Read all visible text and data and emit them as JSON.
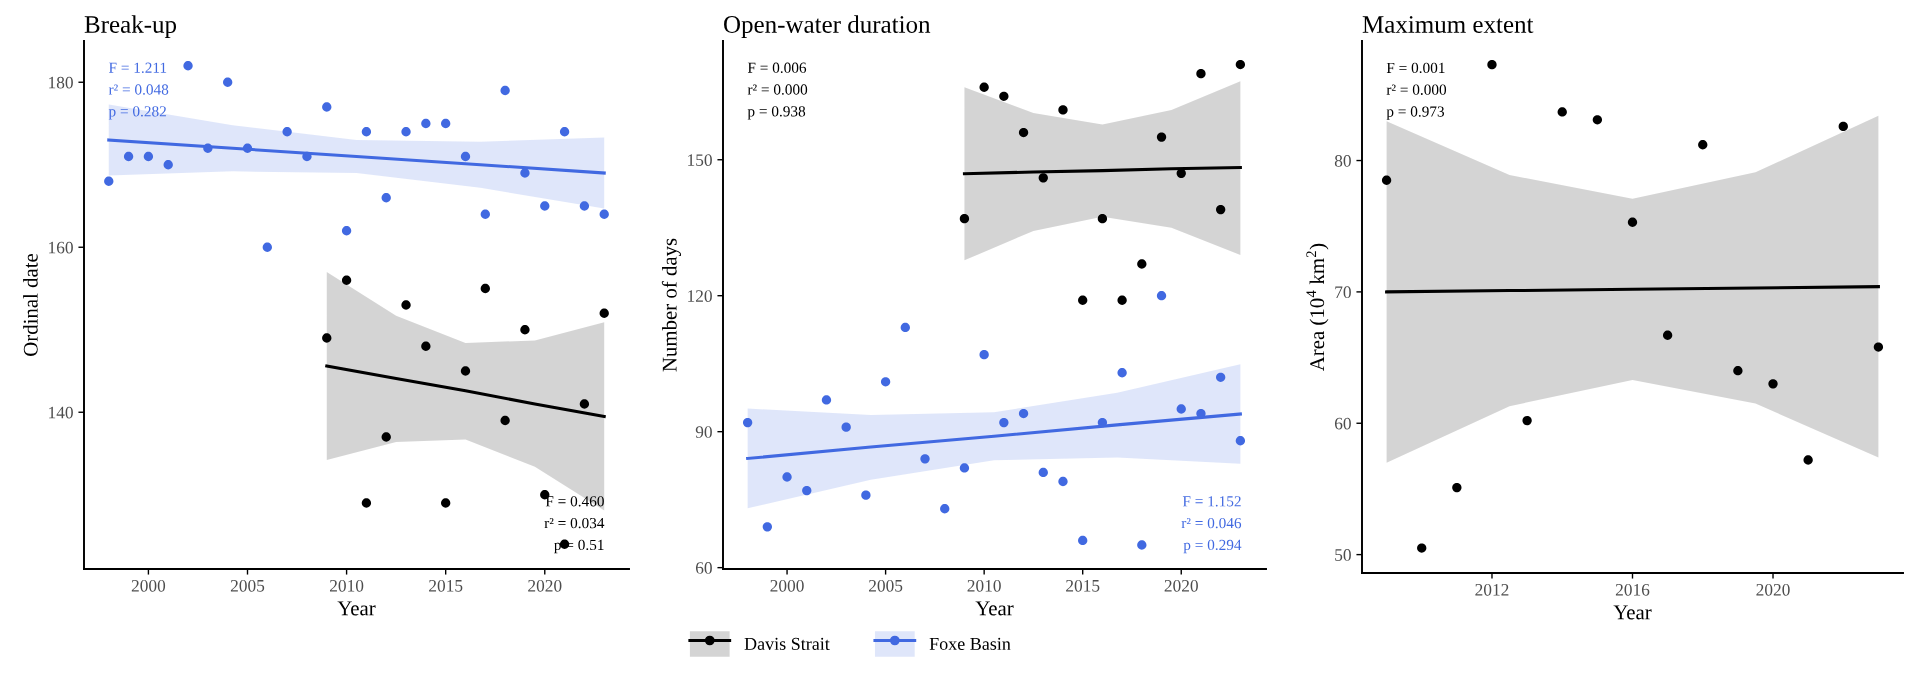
{
  "chart_data": [
    {
      "type": "scatter",
      "title": "Break-up",
      "xlabel": "Year",
      "ylabel": "Ordinal date",
      "xlim": [
        1996.75,
        2024.25
      ],
      "xticks": [
        2000,
        2005,
        2010,
        2015,
        2020
      ],
      "ylim": [
        121,
        185
      ],
      "yticks": [
        140,
        160,
        180
      ],
      "grid": false,
      "legend": false,
      "annotations": [
        "F = 1.211\nr² = 0.048\np = 0.282",
        "F = 0.460\nr² = 0.034\np = 0.51"
      ],
      "series": [
        {
          "marker": "circle",
          "color": "#4169e1",
          "x": [
            1998,
            1999,
            2000,
            2001,
            2002,
            2003,
            2004,
            2005,
            2006,
            2007,
            2008,
            2009,
            2010,
            2011,
            2012,
            2013,
            2014,
            2015,
            2016,
            2017,
            2018,
            2019,
            2020,
            2021,
            2022,
            2023
          ],
          "values": [
            168,
            171,
            171,
            170,
            182,
            172,
            180,
            172,
            160,
            174,
            171,
            177,
            162,
            174,
            166,
            174,
            175,
            175,
            171,
            164,
            179,
            169,
            165,
            174,
            165,
            164
          ]
        },
        {
          "marker": "circle",
          "color": "#000000",
          "x": [
            2009,
            2010,
            2011,
            2012,
            2013,
            2014,
            2015,
            2016,
            2017,
            2018,
            2019,
            2020,
            2021,
            2022,
            2023
          ],
          "values": [
            149,
            156,
            129,
            137,
            153,
            148,
            129,
            145,
            155,
            139,
            150,
            130,
            124,
            141,
            152
          ]
        },
        {
          "type": "line",
          "marker": "none",
          "color": "#4169e1",
          "x": [
            1998,
            2004.25,
            2010.5,
            2016.75,
            2023
          ],
          "values": [
            173,
            172,
            171,
            170,
            169
          ],
          "lower": [
            168.7,
            169.2,
            169.0,
            167.2,
            164.7
          ],
          "upper": [
            177.3,
            174.8,
            173.0,
            172.8,
            173.3
          ]
        },
        {
          "type": "line",
          "marker": "none",
          "color": "#000000",
          "x": [
            2009,
            2012.5,
            2016,
            2019.5,
            2023
          ],
          "values": [
            145.6,
            144.1,
            142.6,
            141.0,
            139.5
          ],
          "lower": [
            134.2,
            136.4,
            136.7,
            133.4,
            128.1
          ],
          "upper": [
            157.0,
            151.7,
            148.4,
            148.7,
            150.9
          ]
        }
      ]
    },
    {
      "type": "scatter",
      "title": "Open-water duration",
      "xlabel": "Year",
      "ylabel": "Number of days",
      "xlim": [
        1996.75,
        2024.3
      ],
      "xticks": [
        2000,
        2005,
        2010,
        2015,
        2020
      ],
      "ylim": [
        59.7,
        176.2
      ],
      "yticks": [
        60,
        90,
        120,
        150
      ],
      "grid": false,
      "legend": "bottom",
      "annotations": [
        "F = 0.006\nr² = 0.000\np = 0.938",
        "F = 1.152\nr² = 0.046\np = 0.294"
      ],
      "series": [
        {
          "name": "Davis Strait",
          "marker": "circle",
          "color": "#000000",
          "x": [
            2009,
            2010,
            2011,
            2012,
            2013,
            2014,
            2015,
            2016,
            2017,
            2018,
            2019,
            2020,
            2021,
            2022,
            2023
          ],
          "values": [
            137,
            166,
            164,
            156,
            146,
            161,
            119,
            137,
            119,
            127,
            155,
            147,
            169,
            139,
            171
          ]
        },
        {
          "name": "Foxe Basin",
          "marker": "circle",
          "color": "#4169e1",
          "x": [
            1998,
            1999,
            2000,
            2001,
            2002,
            2003,
            2004,
            2005,
            2006,
            2007,
            2008,
            2009,
            2010,
            2011,
            2012,
            2013,
            2014,
            2015,
            2016,
            2017,
            2018,
            2019,
            2020,
            2021,
            2022,
            2023
          ],
          "values": [
            92,
            69,
            80,
            77,
            97,
            91,
            76,
            101,
            113,
            84,
            73,
            82,
            107,
            92,
            94,
            81,
            79,
            66,
            92,
            103,
            65,
            120,
            95,
            94,
            102,
            88
          ]
        },
        {
          "type": "line",
          "marker": "none",
          "color": "#000000",
          "x": [
            2009,
            2012.5,
            2016,
            2019.5,
            2023
          ],
          "values": [
            146.9,
            147.3,
            147.6,
            148.0,
            148.3
          ],
          "lower": [
            127.8,
            134.3,
            137.4,
            135.0,
            129.0
          ],
          "upper": [
            166.0,
            160.3,
            157.8,
            161.0,
            167.3
          ]
        },
        {
          "type": "line",
          "marker": "none",
          "color": "#4169e1",
          "x": [
            1998,
            2004.25,
            2010.5,
            2016.75,
            2023
          ],
          "values": [
            84.1,
            86.6,
            89.0,
            91.5,
            93.9
          ],
          "lower": [
            73.1,
            79.4,
            83.7,
            84.3,
            82.9
          ],
          "upper": [
            95.1,
            93.7,
            94.3,
            98.6,
            104.9
          ]
        }
      ]
    },
    {
      "type": "scatter",
      "title": "Maximum extent",
      "xlabel": "Year",
      "ylabel": "Area (10$^{4}$ km$^{2}$)",
      "xlim": [
        2008.3,
        2023.7
      ],
      "xticks": [
        2012,
        2016,
        2020
      ],
      "ylim": [
        48.6,
        89.1
      ],
      "yticks": [
        50,
        60,
        70,
        80
      ],
      "grid": false,
      "legend": false,
      "annotations": [
        "F = 0.001\nr² = 0.000\np = 0.973"
      ],
      "series": [
        {
          "marker": "circle",
          "color": "#000000",
          "x": [
            2009,
            2010,
            2011,
            2012,
            2013,
            2014,
            2015,
            2016,
            2017,
            2018,
            2019,
            2020,
            2021,
            2022,
            2023
          ],
          "values": [
            78.5,
            50.5,
            55.1,
            87.3,
            60.2,
            83.7,
            83.1,
            75.3,
            66.7,
            81.2,
            64.0,
            63.0,
            57.2,
            82.6,
            65.8
          ]
        },
        {
          "type": "line",
          "marker": "none",
          "color": "#000000",
          "x": [
            2009,
            2012.5,
            2016,
            2019.5,
            2023
          ],
          "values": [
            70.0,
            70.1,
            70.2,
            70.3,
            70.4
          ],
          "lower": [
            57.0,
            61.3,
            63.3,
            61.5,
            57.4
          ],
          "upper": [
            83.0,
            78.9,
            77.1,
            79.1,
            83.4
          ]
        }
      ]
    }
  ]
}
